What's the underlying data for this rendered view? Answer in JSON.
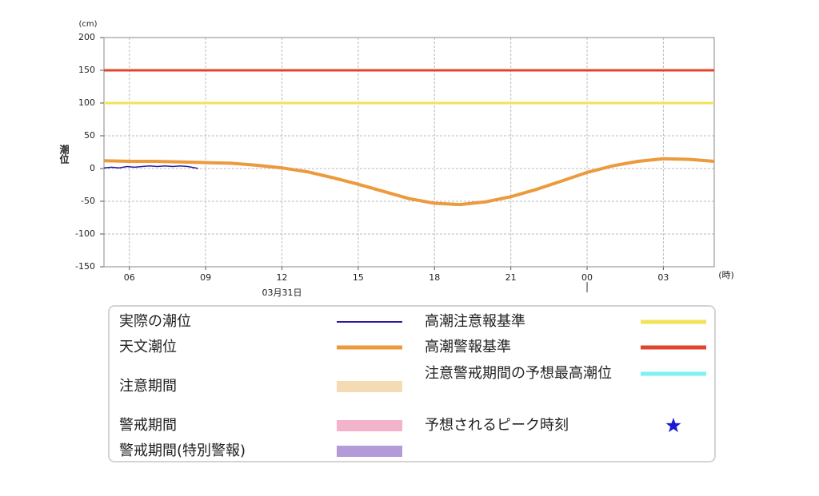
{
  "chart_data": {
    "type": "line",
    "y_unit": "(cm)",
    "x_unit": "(時)",
    "ylabel": "潮位",
    "date_label": "03月31日",
    "xlim": [
      5,
      29
    ],
    "ylim": [
      -150,
      200
    ],
    "xticks": [
      {
        "value": 6,
        "label": "06"
      },
      {
        "value": 9,
        "label": "09"
      },
      12,
      15,
      18,
      21,
      {
        "value": 24,
        "label": "00"
      },
      {
        "value": 27,
        "label": "03"
      }
    ],
    "yticks": [
      200,
      150,
      100,
      50,
      0,
      -50,
      -100,
      -150
    ],
    "grid": true,
    "series": [
      {
        "name": "実際の潮位",
        "color": "#2a1aa0",
        "width": 1.5,
        "x": [
          5,
          5.3,
          5.6,
          5.9,
          6.2,
          6.5,
          6.8,
          7.1,
          7.4,
          7.7,
          8,
          8.3,
          8.6,
          8.7
        ],
        "values": [
          1,
          2,
          1,
          3,
          2,
          3,
          4,
          3,
          4,
          3,
          4,
          3,
          1,
          0
        ]
      },
      {
        "name": "天文潮位",
        "color": "#eb9a3c",
        "width": 4,
        "x": [
          5,
          6,
          7,
          8,
          9,
          10,
          11,
          12,
          13,
          14,
          15,
          16,
          17,
          18,
          19,
          20,
          21,
          22,
          23,
          24,
          25,
          26,
          27,
          28,
          29
        ],
        "values": [
          12,
          11,
          11,
          10,
          9,
          8,
          5,
          1,
          -5,
          -14,
          -24,
          -35,
          -46,
          -53,
          -55,
          -51,
          -43,
          -32,
          -19,
          -6,
          4,
          11,
          15,
          14,
          11
        ]
      },
      {
        "name": "高潮注意報基準",
        "color": "#f2e25a",
        "width": 3,
        "x": [
          5,
          29
        ],
        "values": [
          100,
          100
        ]
      },
      {
        "name": "高潮警報基準",
        "color": "#e0452b",
        "width": 3,
        "x": [
          5,
          29
        ],
        "values": [
          150,
          150
        ]
      }
    ],
    "other_legend_items": [
      {
        "name": "注意期間",
        "color": "#f5dbb3",
        "style": "band"
      },
      {
        "name": "警戒期間",
        "color": "#f3b3cb",
        "style": "band"
      },
      {
        "name": "警戒期間(特別警報)",
        "color": "#b39ad9",
        "style": "band"
      },
      {
        "name": "注意警戒期間の予想最高潮位",
        "color": "#7ef2f2",
        "style": "line"
      },
      {
        "name": "予想されるピーク時刻",
        "color": "#1a1ad6",
        "style": "star"
      }
    ]
  }
}
